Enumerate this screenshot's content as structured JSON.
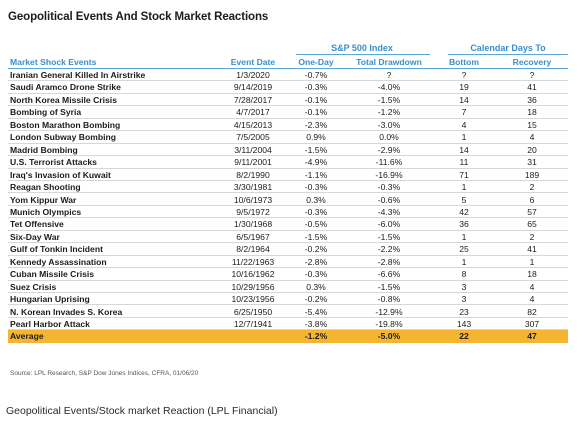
{
  "title": "Geopolitical Events And Stock Market Reactions",
  "groups": {
    "sp500": "S&P 500 Index",
    "calendar": "Calendar Days To"
  },
  "columns": {
    "event": "Market Shock Events",
    "date": "Event Date",
    "one_day": "One-Day",
    "drawdown": "Total Drawdown",
    "bottom": "Bottom",
    "recovery": "Recovery"
  },
  "rows": [
    {
      "event": "Iranian General Killed In Airstrike",
      "date": "1/3/2020",
      "one_day": "-0.7%",
      "drawdown": "?",
      "bottom": "?",
      "recovery": "?"
    },
    {
      "event": "Saudi Aramco Drone Strike",
      "date": "9/14/2019",
      "one_day": "-0.3%",
      "drawdown": "-4.0%",
      "bottom": "19",
      "recovery": "41"
    },
    {
      "event": "North Korea Missile Crisis",
      "date": "7/28/2017",
      "one_day": "-0.1%",
      "drawdown": "-1.5%",
      "bottom": "14",
      "recovery": "36"
    },
    {
      "event": "Bombing of Syria",
      "date": "4/7/2017",
      "one_day": "-0.1%",
      "drawdown": "-1.2%",
      "bottom": "7",
      "recovery": "18"
    },
    {
      "event": "Boston Marathon Bombing",
      "date": "4/15/2013",
      "one_day": "-2.3%",
      "drawdown": "-3.0%",
      "bottom": "4",
      "recovery": "15"
    },
    {
      "event": "London Subway Bombing",
      "date": "7/5/2005",
      "one_day": "0.9%",
      "drawdown": "0.0%",
      "bottom": "1",
      "recovery": "4"
    },
    {
      "event": "Madrid Bombing",
      "date": "3/11/2004",
      "one_day": "-1.5%",
      "drawdown": "-2.9%",
      "bottom": "14",
      "recovery": "20"
    },
    {
      "event": "U.S. Terrorist Attacks",
      "date": "9/11/2001",
      "one_day": "-4.9%",
      "drawdown": "-11.6%",
      "bottom": "11",
      "recovery": "31"
    },
    {
      "event": "Iraq's Invasion of Kuwait",
      "date": "8/2/1990",
      "one_day": "-1.1%",
      "drawdown": "-16.9%",
      "bottom": "71",
      "recovery": "189"
    },
    {
      "event": "Reagan Shooting",
      "date": "3/30/1981",
      "one_day": "-0.3%",
      "drawdown": "-0.3%",
      "bottom": "1",
      "recovery": "2"
    },
    {
      "event": "Yom Kippur War",
      "date": "10/6/1973",
      "one_day": "0.3%",
      "drawdown": "-0.6%",
      "bottom": "5",
      "recovery": "6"
    },
    {
      "event": "Munich Olympics",
      "date": "9/5/1972",
      "one_day": "-0.3%",
      "drawdown": "-4.3%",
      "bottom": "42",
      "recovery": "57"
    },
    {
      "event": "Tet Offensive",
      "date": "1/30/1968",
      "one_day": "-0.5%",
      "drawdown": "-6.0%",
      "bottom": "36",
      "recovery": "65"
    },
    {
      "event": "Six-Day War",
      "date": "6/5/1967",
      "one_day": "-1.5%",
      "drawdown": "-1.5%",
      "bottom": "1",
      "recovery": "2"
    },
    {
      "event": "Gulf of Tonkin Incident",
      "date": "8/2/1964",
      "one_day": "-0.2%",
      "drawdown": "-2.2%",
      "bottom": "25",
      "recovery": "41"
    },
    {
      "event": "Kennedy Assassination",
      "date": "11/22/1963",
      "one_day": "-2.8%",
      "drawdown": "-2.8%",
      "bottom": "1",
      "recovery": "1"
    },
    {
      "event": "Cuban Missile Crisis",
      "date": "10/16/1962",
      "one_day": "-0.3%",
      "drawdown": "-6.6%",
      "bottom": "8",
      "recovery": "18"
    },
    {
      "event": "Suez Crisis",
      "date": "10/29/1956",
      "one_day": "0.3%",
      "drawdown": "-1.5%",
      "bottom": "3",
      "recovery": "4"
    },
    {
      "event": "Hungarian Uprising",
      "date": "10/23/1956",
      "one_day": "-0.2%",
      "drawdown": "-0.8%",
      "bottom": "3",
      "recovery": "4"
    },
    {
      "event": "N. Korean Invades S. Korea",
      "date": "6/25/1950",
      "one_day": "-5.4%",
      "drawdown": "-12.9%",
      "bottom": "23",
      "recovery": "82"
    },
    {
      "event": "Pearl Harbor Attack",
      "date": "12/7/1941",
      "one_day": "-3.8%",
      "drawdown": "-19.8%",
      "bottom": "143",
      "recovery": "307"
    }
  ],
  "average": {
    "event": "Average",
    "date": "",
    "one_day": "-1.2%",
    "drawdown": "-5.0%",
    "bottom": "22",
    "recovery": "47"
  },
  "colors": {
    "accent": "#3a8fc8",
    "highlight": "#f5b530"
  },
  "source": "Source: LPL Research, S&P Dow Jones Indices, CFRA, 01/06/20",
  "caption": "Geopolitical Events/Stock market Reaction (LPL Financial)"
}
